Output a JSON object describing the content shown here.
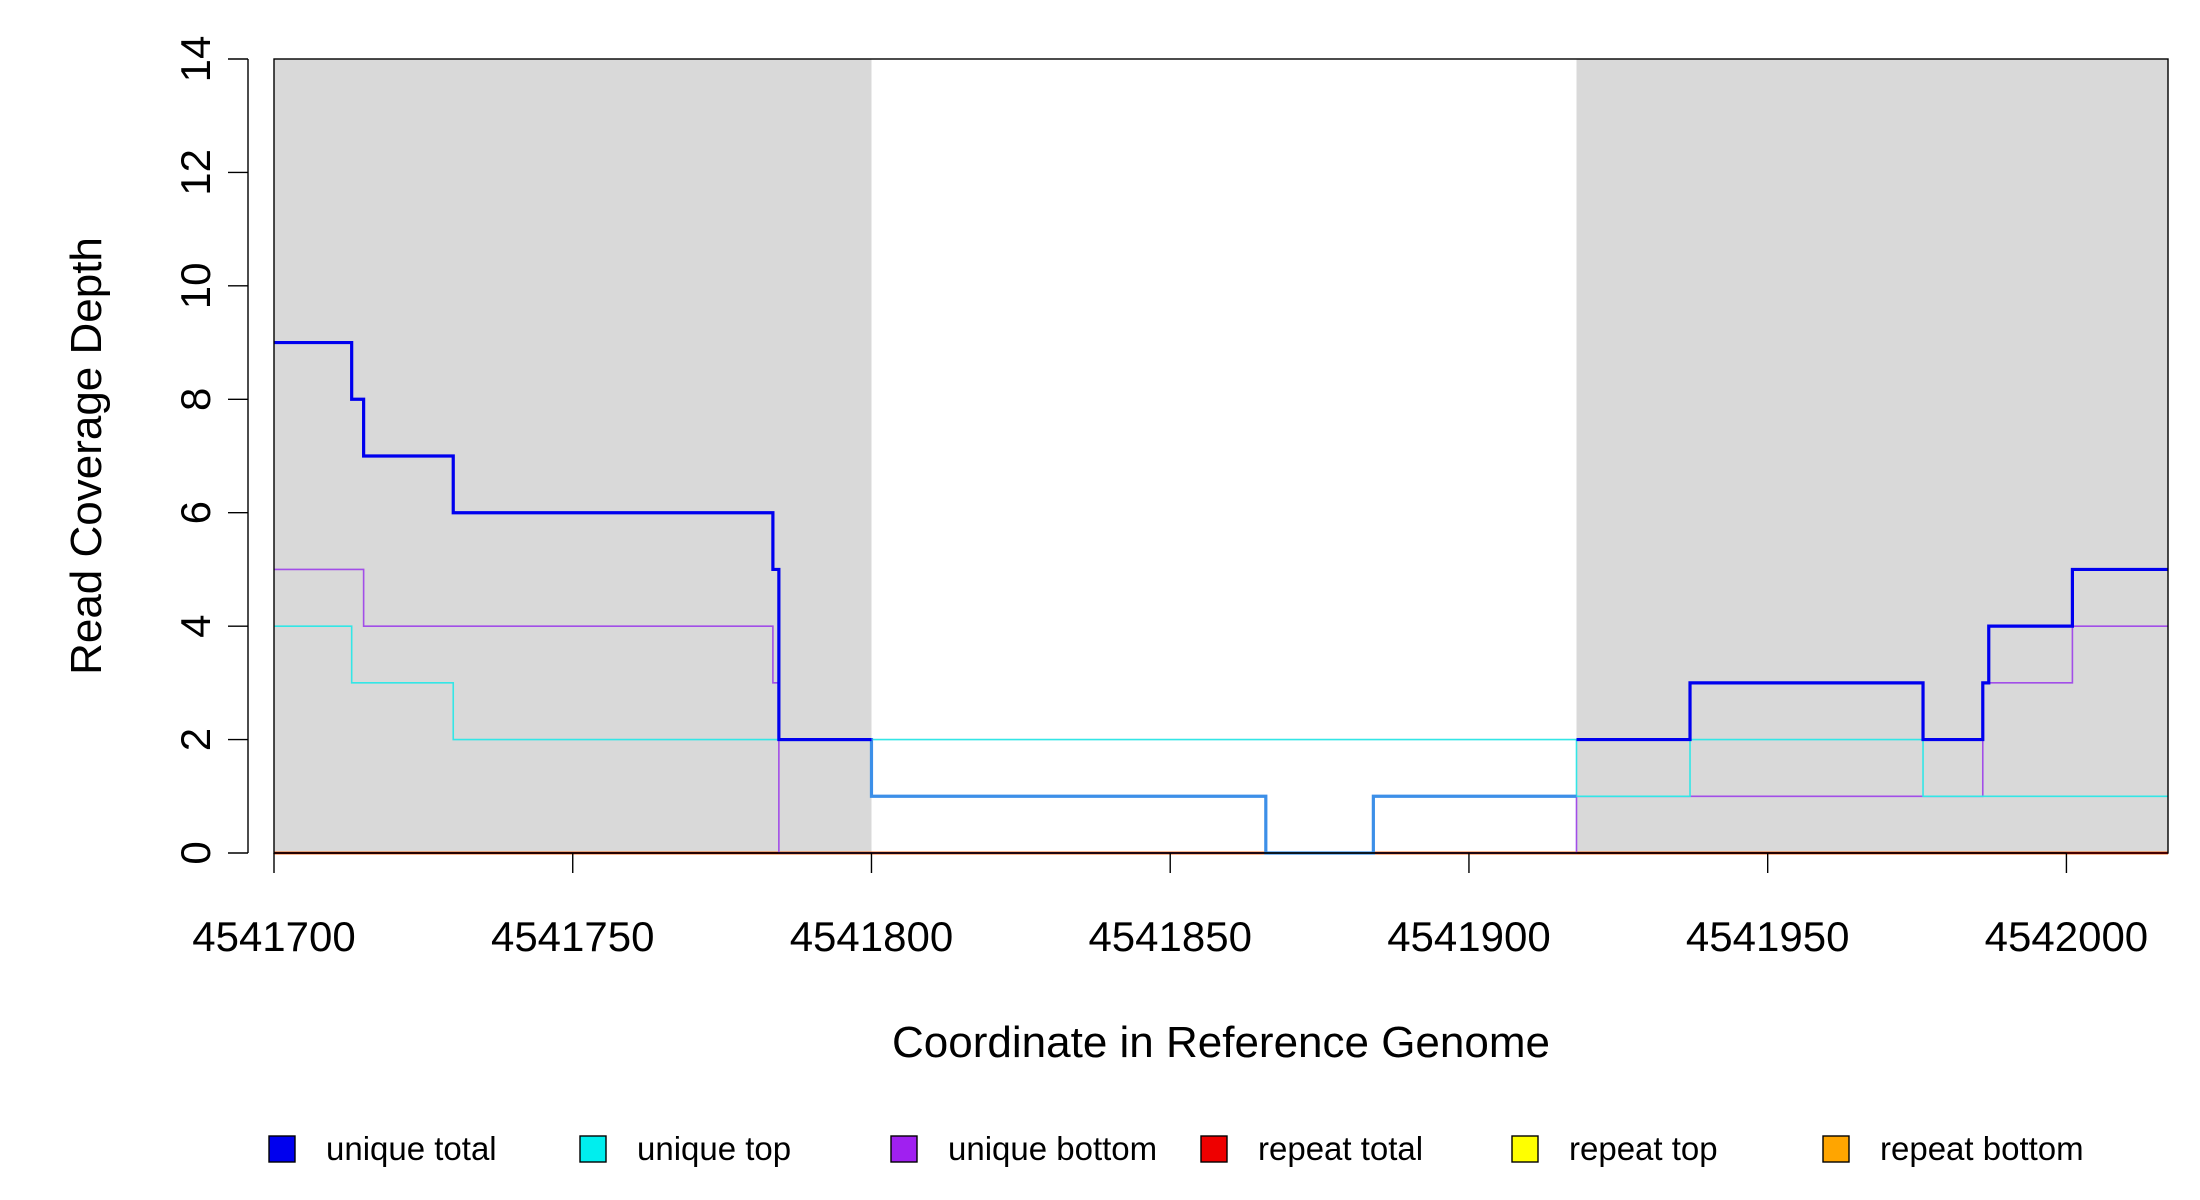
{
  "chart_data": {
    "type": "line",
    "xlabel": "Coordinate in Reference Genome",
    "ylabel": "Read Coverage Depth",
    "xlim": [
      4541700,
      4542017
    ],
    "ylim": [
      0,
      14
    ],
    "x_ticks": [
      4541700,
      4541750,
      4541800,
      4541850,
      4541900,
      4541950,
      4542000
    ],
    "x_tick_labels": [
      "4541700",
      "4541750",
      "4541800",
      "4541850",
      "4541900",
      "4541950",
      "4542000"
    ],
    "y_ticks": [
      0,
      2,
      4,
      6,
      8,
      10,
      12,
      14
    ],
    "y_tick_labels": [
      "0",
      "2",
      "4",
      "6",
      "8",
      "10",
      "12",
      "14"
    ],
    "shaded_regions": [
      [
        4541700,
        4541800
      ],
      [
        4541918,
        4542017
      ]
    ],
    "shade_color": "#d9d9d9",
    "legend_position": "bottom",
    "series": [
      {
        "name": "unique total",
        "color": "#0000ee",
        "style": "step",
        "x": [
          4541700,
          4541713,
          4541715,
          4541730,
          4541783.5,
          4541784.5,
          4541800
        ],
        "y": [
          9,
          8,
          7,
          6,
          5,
          2,
          2
        ]
      },
      {
        "name": "unique top",
        "color": "#33e6e6",
        "style": "step",
        "x": [
          4541700,
          4541713,
          4541730,
          4541784.5,
          4541800,
          4541918,
          4541937,
          4541976,
          4541986,
          4542017
        ],
        "y": [
          4,
          3,
          2,
          2,
          2,
          1,
          2,
          1,
          1,
          1
        ]
      },
      {
        "name": "unique bottom",
        "color": "#a24ee8",
        "style": "step",
        "x": [
          4541700,
          4541715,
          4541783.5,
          4541784.5,
          4541800,
          4541918,
          4541986,
          4542001,
          4542017
        ],
        "y": [
          5,
          4,
          3,
          0,
          0,
          1,
          3,
          4,
          4
        ]
      },
      {
        "name": "unique total (inter-region)",
        "legend": false,
        "color": "#3c8fe8",
        "style": "step",
        "x": [
          4541784.5,
          4541800,
          4541866,
          4541884,
          4541918
        ],
        "y": [
          2,
          1,
          0,
          1,
          1
        ]
      },
      {
        "name": "unique total (right region)",
        "legend": false,
        "color": "#0000ee",
        "style": "step",
        "x": [
          4541918,
          4541937,
          4541976,
          4541986,
          4541987,
          4542001,
          4542017
        ],
        "y": [
          2,
          3,
          2,
          3,
          4,
          5,
          5
        ]
      },
      {
        "name": "repeat total",
        "color": "#ee0000",
        "style": "step",
        "x": [
          4541700,
          4542017
        ],
        "y": [
          0,
          0
        ]
      },
      {
        "name": "repeat top",
        "color": "#ffff00",
        "style": "step",
        "x": [
          4541700,
          4542017
        ],
        "y": [
          0,
          0
        ]
      },
      {
        "name": "repeat bottom",
        "color": "#e07a10",
        "style": "step",
        "x": [
          4541700,
          4542017
        ],
        "y": [
          0,
          0
        ]
      }
    ],
    "legend": [
      {
        "label": "unique total",
        "color": "#0000ee"
      },
      {
        "label": "unique top",
        "color": "#00eeee"
      },
      {
        "label": "unique bottom",
        "color": "#a020f0"
      },
      {
        "label": "repeat total",
        "color": "#ee0000"
      },
      {
        "label": "repeat top",
        "color": "#ffff00"
      },
      {
        "label": "repeat bottom",
        "color": "#ffa500"
      }
    ]
  }
}
